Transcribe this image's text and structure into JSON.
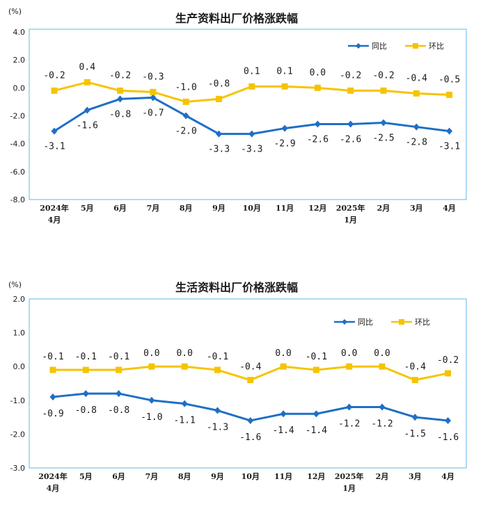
{
  "colors": {
    "yoy": "#1f6fc5",
    "mom": "#f5c400",
    "frame": "#5cb8e6"
  },
  "chart_data": [
    {
      "type": "line",
      "title": "生产资料出厂价格涨跌幅",
      "unit_label": "(%)",
      "categories": [
        [
          "2024年",
          "4月"
        ],
        [
          "5月"
        ],
        [
          "6月"
        ],
        [
          "7月"
        ],
        [
          "8月"
        ],
        [
          "9月"
        ],
        [
          "10月"
        ],
        [
          "11月"
        ],
        [
          "12月"
        ],
        [
          "2025年",
          "1月"
        ],
        [
          "2月"
        ],
        [
          "3月"
        ],
        [
          "4月"
        ]
      ],
      "y_ticks": [
        "4.0",
        "2.0",
        "0.0",
        "-2.0",
        "-4.0",
        "-6.0",
        "-8.0"
      ],
      "ylim": [
        -8,
        4
      ],
      "legend_position": "top-right",
      "series": [
        {
          "name": "同比",
          "key": "yoy",
          "values": [
            -3.1,
            -1.6,
            -0.8,
            -0.7,
            -2.0,
            -3.3,
            -3.3,
            -2.9,
            -2.6,
            -2.6,
            -2.5,
            -2.8,
            -3.1
          ],
          "labels": [
            "-3.1",
            "-1.6",
            "-0.8",
            "-0.7",
            "-2.0",
            "-3.3",
            "-3.3",
            "-2.9",
            "-2.6",
            "-2.6",
            "-2.5",
            "-2.8",
            "-3.1"
          ]
        },
        {
          "name": "环比",
          "key": "mom",
          "values": [
            -0.2,
            0.4,
            -0.2,
            -0.3,
            -1.0,
            -0.8,
            0.1,
            0.1,
            0.0,
            -0.2,
            -0.2,
            -0.4,
            -0.5
          ],
          "labels": [
            "-0.2",
            "0.4",
            "-0.2",
            "-0.3",
            "-1.0",
            "-0.8",
            "0.1",
            "0.1",
            "0.0",
            "-0.2",
            "-0.2",
            "-0.4",
            "-0.5"
          ]
        }
      ]
    },
    {
      "type": "line",
      "title": "生活资料出厂价格涨跌幅",
      "unit_label": "(%)",
      "categories": [
        [
          "2024年",
          "4月"
        ],
        [
          "5月"
        ],
        [
          "6月"
        ],
        [
          "7月"
        ],
        [
          "8月"
        ],
        [
          "9月"
        ],
        [
          "10月"
        ],
        [
          "11月"
        ],
        [
          "12月"
        ],
        [
          "2025年",
          "1月"
        ],
        [
          "2月"
        ],
        [
          "3月"
        ],
        [
          "4月"
        ]
      ],
      "y_ticks": [
        "2.0",
        "1.0",
        "0.0",
        "-1.0",
        "-2.0",
        "-3.0"
      ],
      "ylim": [
        -3,
        2
      ],
      "legend_position": "top-right",
      "series": [
        {
          "name": "同比",
          "key": "yoy",
          "values": [
            -0.9,
            -0.8,
            -0.8,
            -1.0,
            -1.1,
            -1.3,
            -1.6,
            -1.4,
            -1.4,
            -1.2,
            -1.2,
            -1.5,
            -1.6
          ],
          "labels": [
            "-0.9",
            "-0.8",
            "-0.8",
            "-1.0",
            "-1.1",
            "-1.3",
            "-1.6",
            "-1.4",
            "-1.4",
            "-1.2",
            "-1.2",
            "-1.5",
            "-1.6"
          ]
        },
        {
          "name": "环比",
          "key": "mom",
          "values": [
            -0.1,
            -0.1,
            -0.1,
            0.0,
            0.0,
            -0.1,
            -0.4,
            0.0,
            -0.1,
            0.0,
            0.0,
            -0.4,
            -0.2
          ],
          "labels": [
            "-0.1",
            "-0.1",
            "-0.1",
            "0.0",
            "0.0",
            "-0.1",
            "-0.4",
            "0.0",
            "-0.1",
            "0.0",
            "0.0",
            "-0.4",
            "-0.2"
          ]
        }
      ]
    }
  ]
}
